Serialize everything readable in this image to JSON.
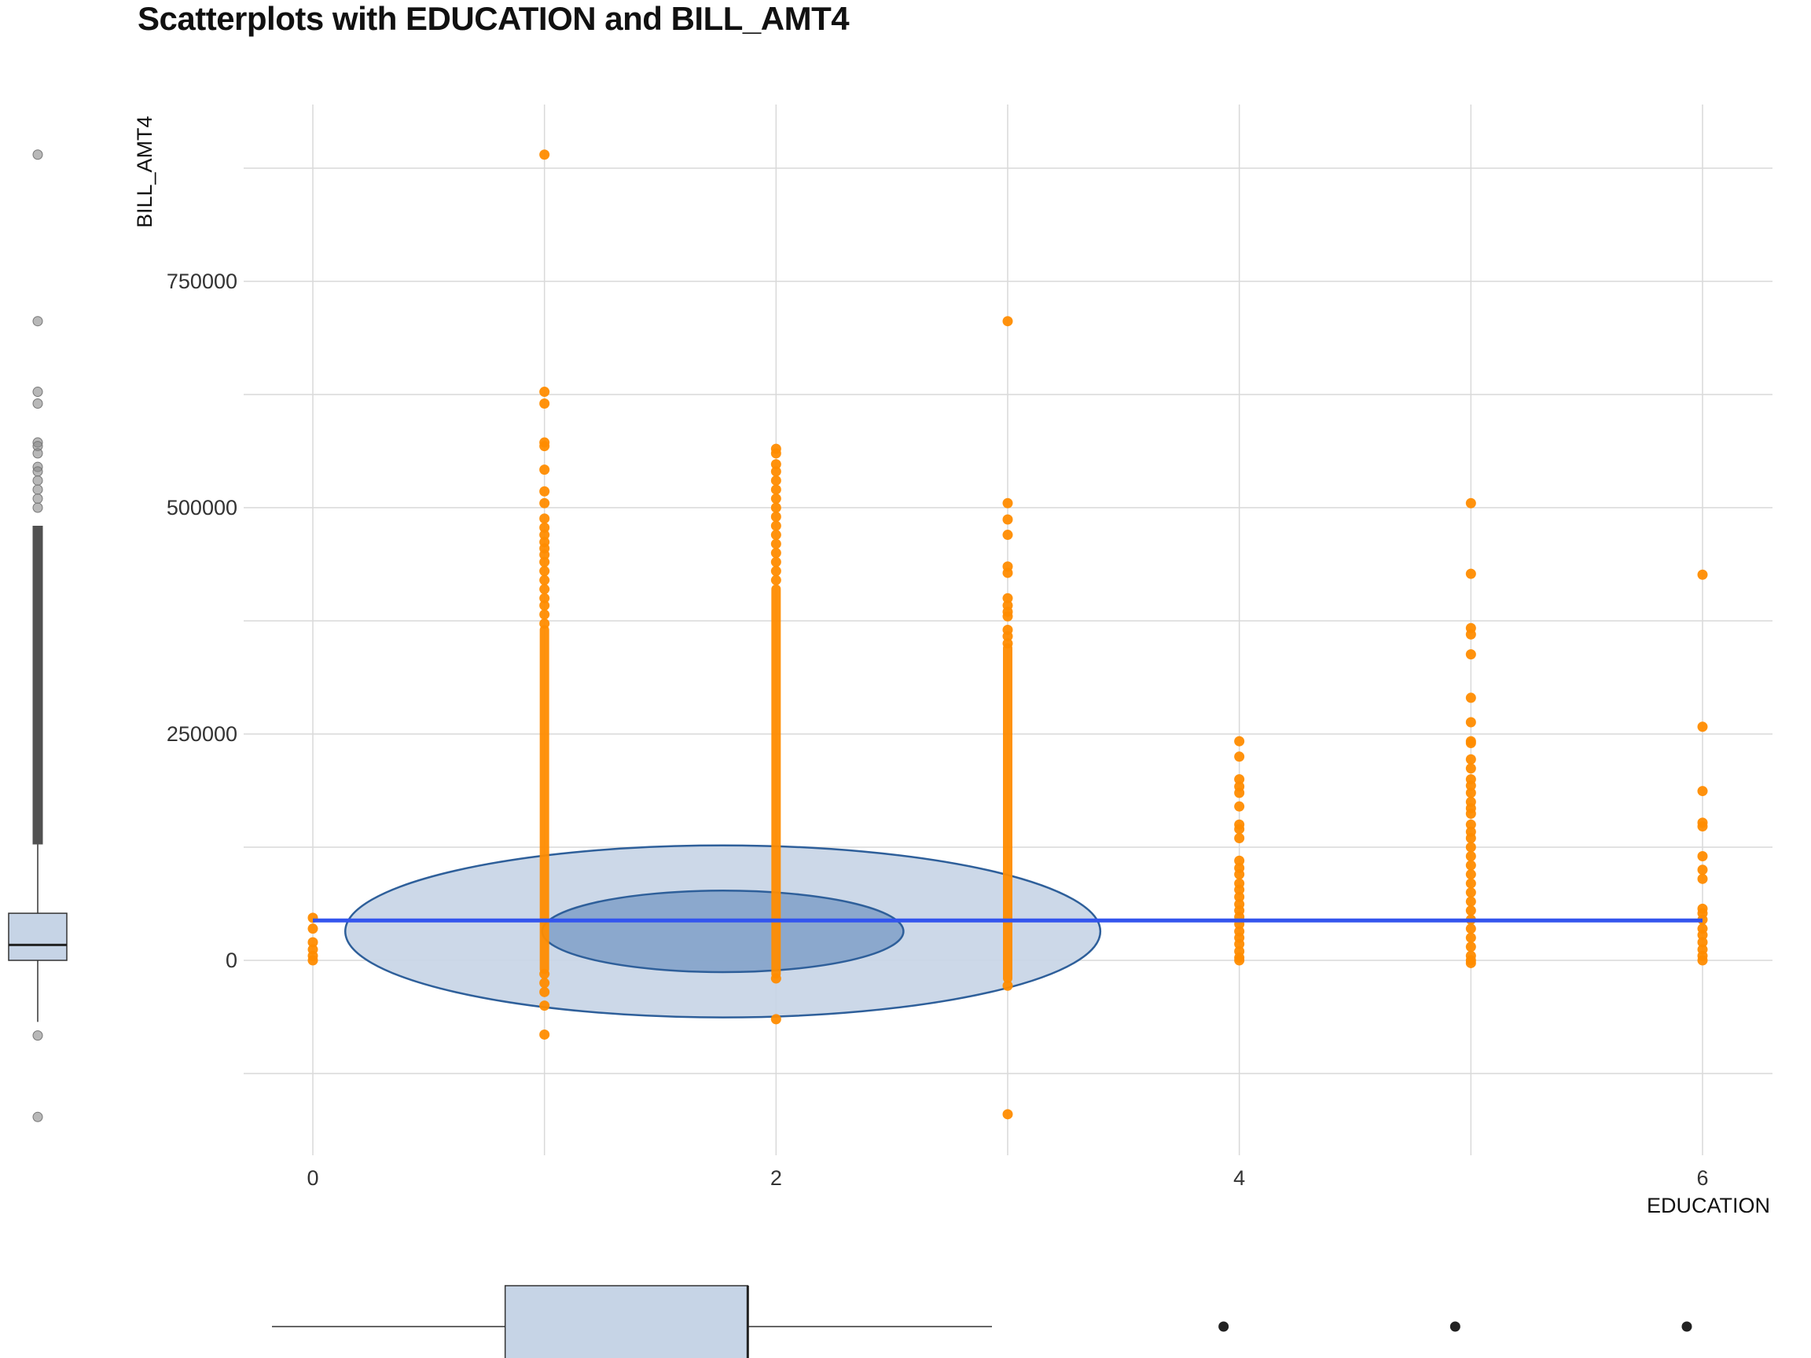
{
  "chart_data": {
    "type": "scatter",
    "title": "Scatterplots with EDUCATION and BILL_AMT4",
    "xlabel": "EDUCATION",
    "ylabel": "BILL_AMT4",
    "xlim": [
      -0.3,
      6.3
    ],
    "ylim": [
      -170000,
      938000
    ],
    "x_ticks": [
      0,
      2,
      4,
      6
    ],
    "x_gridlines": [
      0,
      1,
      2,
      3,
      4,
      5,
      6
    ],
    "y_ticks": [
      0,
      250000,
      500000,
      750000
    ],
    "y_tick_labels": [
      "0",
      "250000",
      "500000",
      "750000"
    ],
    "y_gridlines": [
      -125000,
      0,
      125000,
      250000,
      375000,
      500000,
      625000,
      750000,
      875000
    ],
    "grid": true,
    "colors": {
      "points": "#ff8c00",
      "trend_line": "#3355ee",
      "ellipse_outer_fill": "#c6d4e6",
      "ellipse_inner_fill": "#7fa0c8",
      "ellipse_stroke": "#2e5f9a",
      "box_fill": "#c6d4e6",
      "grid": "#d9d9d9"
    },
    "trend_line": {
      "x": [
        0,
        6
      ],
      "y": [
        44000,
        44000
      ]
    },
    "ellipses": [
      {
        "level": "outer",
        "cx": 1.77,
        "cy": 32000,
        "rx": 1.63,
        "ry": 95000
      },
      {
        "level": "inner",
        "cx": 1.77,
        "cy": 32000,
        "rx": 0.78,
        "ry": 45000
      }
    ],
    "groups": [
      {
        "x": 0,
        "points": [
          47000,
          35000,
          20000,
          12000,
          5000,
          0
        ],
        "dense_ranges": []
      },
      {
        "x": 1,
        "points": [
          890000,
          628000,
          615000,
          572000,
          568000,
          542000,
          518000,
          505000,
          488000,
          478000,
          470000,
          462000,
          455000,
          448000,
          440000,
          430000,
          420000,
          410000,
          400000,
          392000,
          382000,
          372000,
          -15000,
          -25000,
          -35000,
          -50000,
          -82000
        ],
        "dense_ranges": [
          [
            -10000,
            365000
          ]
        ]
      },
      {
        "x": 2,
        "points": [
          565000,
          560000,
          548000,
          540000,
          530000,
          520000,
          510000,
          500000,
          490000,
          480000,
          470000,
          460000,
          450000,
          440000,
          430000,
          420000,
          -20000,
          -65000
        ],
        "dense_ranges": [
          [
            -15000,
            410000
          ]
        ]
      },
      {
        "x": 3,
        "points": [
          706000,
          505000,
          487000,
          470000,
          435000,
          428000,
          400000,
          392000,
          385000,
          380000,
          365000,
          358000,
          350000,
          -28000,
          -170000
        ],
        "dense_ranges": [
          [
            -20000,
            345000
          ]
        ]
      },
      {
        "x": 4,
        "points": [
          242000,
          225000,
          200000,
          192000,
          185000,
          170000,
          150000,
          145000,
          135000,
          110000,
          102000,
          95000,
          85000,
          78000,
          70000,
          62000,
          55000,
          48000,
          40000,
          32000,
          25000,
          18000,
          10000,
          3000,
          0
        ],
        "dense_ranges": []
      },
      {
        "x": 5,
        "points": [
          505000,
          427000,
          367000,
          360000,
          338000,
          290000,
          263000,
          242000,
          240000,
          222000,
          212000,
          200000,
          193000,
          185000,
          175000,
          168000,
          162000,
          150000,
          142000,
          135000,
          125000,
          115000,
          105000,
          95000,
          85000,
          75000,
          65000,
          55000,
          45000,
          35000,
          25000,
          15000,
          5000,
          0,
          -3000
        ],
        "dense_ranges": []
      },
      {
        "x": 6,
        "points": [
          426000,
          258000,
          187000,
          152000,
          148000,
          115000,
          100000,
          90000,
          57000,
          52000,
          45000,
          35000,
          28000,
          20000,
          12000,
          5000,
          0
        ],
        "dense_ranges": []
      }
    ],
    "marginal_boxplot_y": {
      "q1": 0,
      "median": 17000,
      "q3": 52000,
      "whisker_low": -68000,
      "whisker_high": 128000,
      "outliers": [
        890000,
        706000,
        628000,
        615000,
        572000,
        568000,
        560000,
        545000,
        540000,
        530000,
        520000,
        510000,
        500000,
        -83000,
        -173000
      ],
      "outlier_dense_range": [
        128000,
        480000
      ]
    },
    "marginal_boxplot_x": {
      "q1": 1,
      "median": 2,
      "q3": 2,
      "whisker_low": 0,
      "whisker_high": 3,
      "outliers": [
        4,
        5,
        6
      ]
    }
  }
}
